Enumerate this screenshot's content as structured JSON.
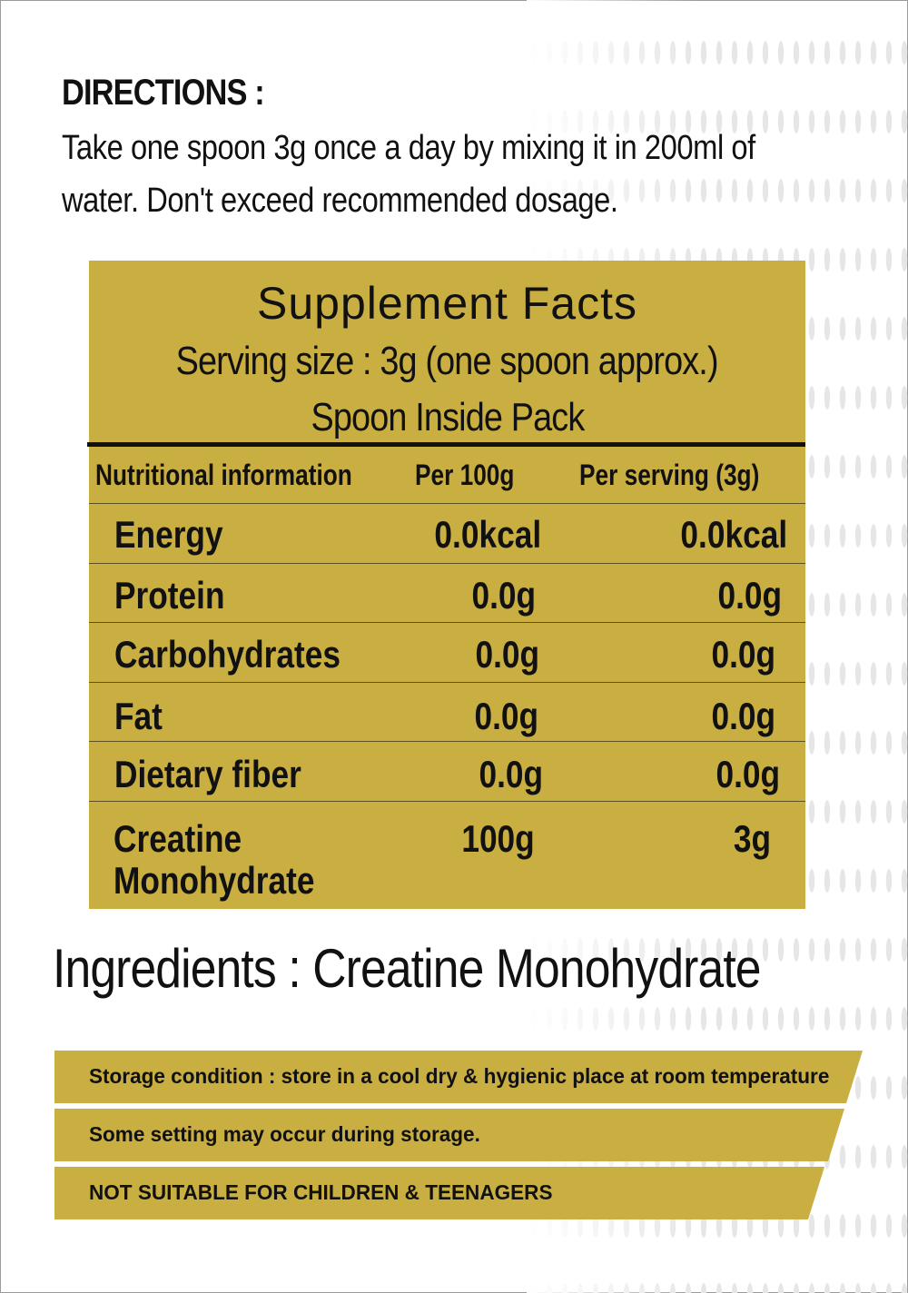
{
  "colors": {
    "gold": "#c9ae42",
    "ink": "#111111"
  },
  "directions": {
    "title": "DIRECTIONS :",
    "line1": "Take one spoon 3g once a day by mixing it in 200ml of",
    "line2": "water. Don't exceed recommended dosage."
  },
  "facts": {
    "title": "Supplement Facts",
    "serving": "Serving size : 3g (one spoon approx.)",
    "spoon_note": "Spoon Inside Pack",
    "headers": {
      "name": "Nutritional information",
      "per100": "Per 100g",
      "perServing": "Per serving (3g)"
    },
    "rows": [
      {
        "name": "Energy",
        "per100": "0.0kcal",
        "perServing": "0.0kcal"
      },
      {
        "name": "Protein",
        "per100": "0.0g",
        "perServing": "0.0g"
      },
      {
        "name": "Carbohydrates",
        "per100": "0.0g",
        "perServing": "0.0g"
      },
      {
        "name": "Fat",
        "per100": "0.0g",
        "perServing": "0.0g"
      },
      {
        "name": "Dietary fiber",
        "per100": "0.0g",
        "perServing": "0.0g"
      },
      {
        "name_line1": "Creatine",
        "name_line2": "Monohydrate",
        "per100": "100g",
        "perServing": "3g"
      }
    ]
  },
  "ingredients": "Ingredients : Creatine Monohydrate",
  "notices": [
    "Storage condition : store in a cool dry & hygienic place at room temperature",
    "Some setting may occur during storage.",
    "NOT SUITABLE FOR CHILDREN & TEENAGERS"
  ]
}
